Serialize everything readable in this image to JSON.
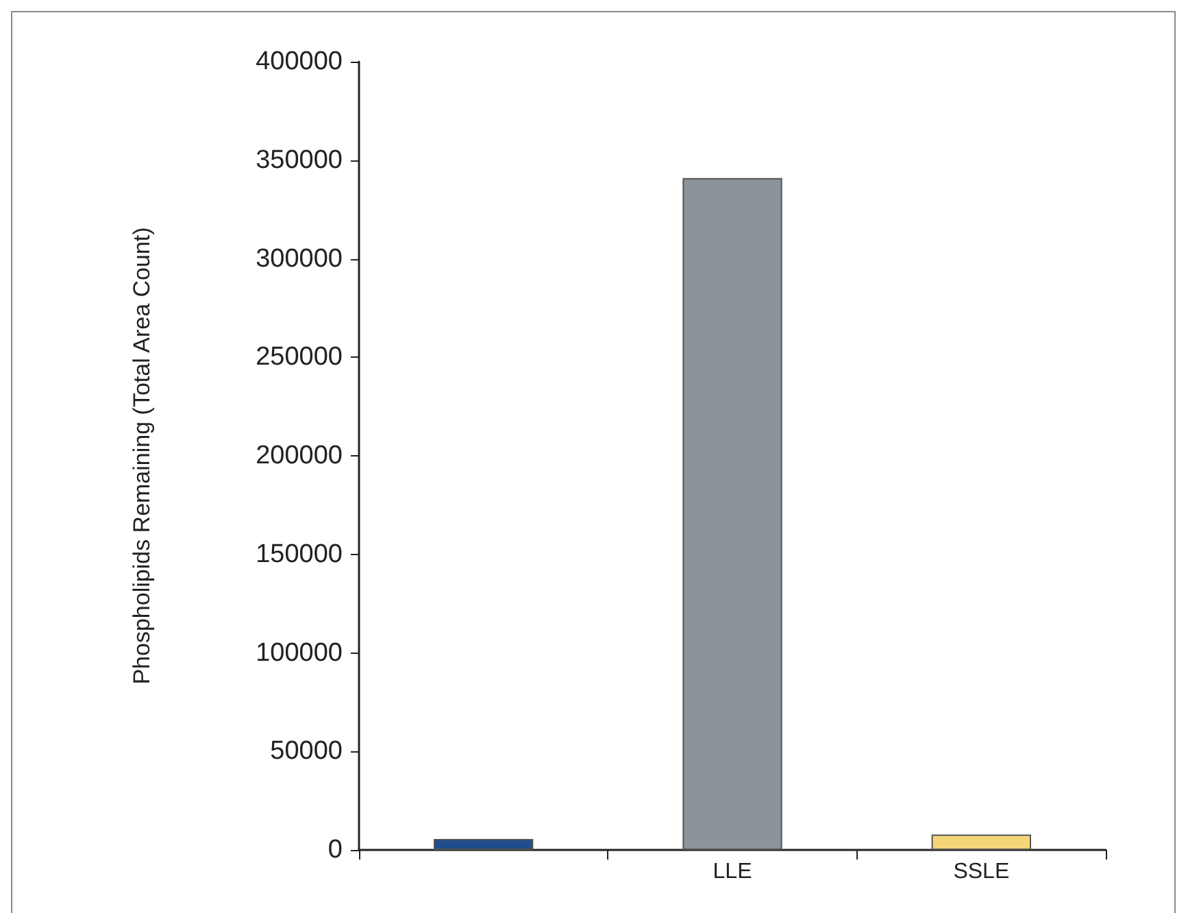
{
  "chart_data": {
    "type": "bar",
    "ylabel": "Phospholipids Remaining (Total Area Count)",
    "categories": [
      null,
      "LLE",
      "SSLE"
    ],
    "values": [
      5600,
      341000,
      7800
    ],
    "colors": [
      "#1f4e8c",
      "#8c9399",
      "#f5d57a"
    ],
    "ylim": [
      0,
      400000
    ],
    "yticks": [
      0,
      50000,
      100000,
      150000,
      200000,
      250000,
      300000,
      350000,
      400000
    ],
    "grid": false
  }
}
